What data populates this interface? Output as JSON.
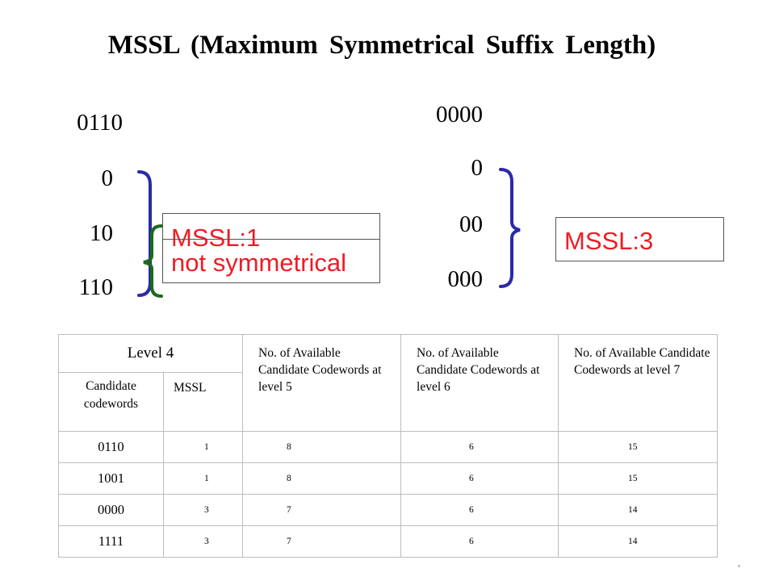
{
  "title": "MSSL  (Maximum Symmetrical Suffix Length)",
  "example_left": {
    "codeword": "0110",
    "suffixes": [
      "0",
      "10",
      "110"
    ],
    "labels": [
      "MSSL:1",
      "not symmetrical"
    ]
  },
  "example_right": {
    "codeword": "0000",
    "suffixes": [
      "0",
      "00",
      "000"
    ],
    "label": "MSSL:3"
  },
  "colors": {
    "label_red": "#ee1c25",
    "brace_blue": "#2a2aa8",
    "brace_green": "#1a6b1a"
  },
  "table": {
    "level_header": "Level 4",
    "sub_headers": [
      "Candidate codewords",
      "MSSL"
    ],
    "available_headers": [
      "No. of Available Candidate Codewords at level 5",
      "No. of Available Candidate Codewords at level 6",
      "No. of Available Candidate Codewords at level 7"
    ],
    "rows": [
      {
        "codeword": "0110",
        "mssl": "1",
        "l5": "8",
        "l6": "6",
        "l7": "15"
      },
      {
        "codeword": "1001",
        "mssl": "1",
        "l5": "8",
        "l6": "6",
        "l7": "15"
      },
      {
        "codeword": "0000",
        "mssl": "3",
        "l5": "7",
        "l6": "6",
        "l7": "14"
      },
      {
        "codeword": "1111",
        "mssl": "3",
        "l5": "7",
        "l6": "6",
        "l7": "14"
      }
    ]
  }
}
